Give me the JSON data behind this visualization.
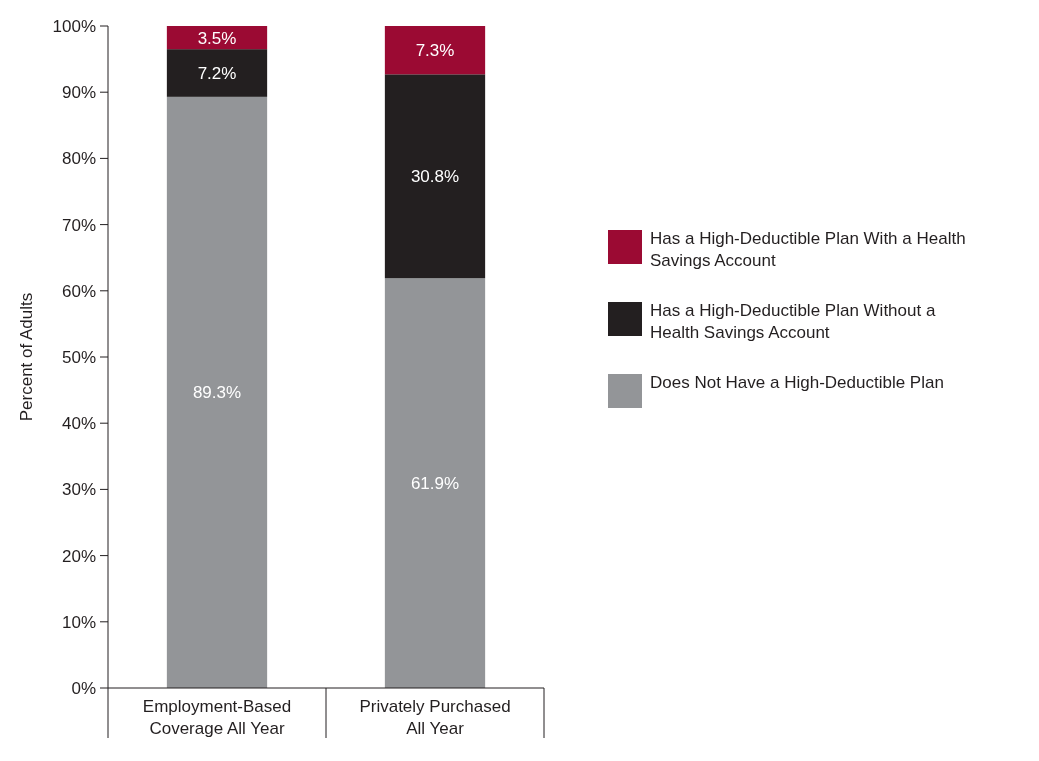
{
  "chart_data": {
    "type": "bar",
    "stacked": true,
    "ylabel": "Percent of Adults",
    "categories": [
      "Employment-Based Coverage All Year",
      "Privately Purchased All Year"
    ],
    "series": [
      {
        "name": "Does Not Have a High-Deductible Plan",
        "color": "#939598",
        "values": [
          89.3,
          61.9
        ],
        "value_labels": [
          "89.3%",
          "61.9%"
        ]
      },
      {
        "name": "Has a High-Deductible Plan Without a Health Savings Account",
        "color": "#231f20",
        "values": [
          7.2,
          30.8
        ],
        "value_labels": [
          "7.2%",
          "30.8%"
        ]
      },
      {
        "name": "Has a High-Deductible Plan With a Health Savings Account",
        "color": "#9b0a33",
        "values": [
          3.5,
          7.3
        ],
        "value_labels": [
          "3.5%",
          "7.3%"
        ]
      }
    ],
    "ylim": [
      0,
      100
    ],
    "yticks": [
      {
        "value": 0,
        "label": "0%"
      },
      {
        "value": 10,
        "label": "10%"
      },
      {
        "value": 20,
        "label": "20%"
      },
      {
        "value": 30,
        "label": "30%"
      },
      {
        "value": 40,
        "label": "40%"
      },
      {
        "value": 50,
        "label": "50%"
      },
      {
        "value": 60,
        "label": "60%"
      },
      {
        "value": 70,
        "label": "70%"
      },
      {
        "value": 80,
        "label": "80%"
      },
      {
        "value": 90,
        "label": "90%"
      },
      {
        "value": 100,
        "label": "100%"
      }
    ],
    "legend": "right",
    "grid": false
  }
}
